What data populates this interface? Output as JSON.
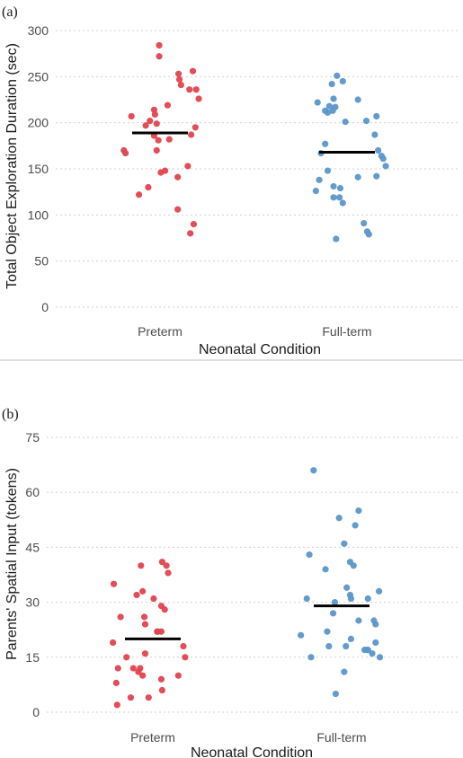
{
  "colors": {
    "preterm": "#e0434f",
    "fullterm": "#5b97c9"
  },
  "chart_data": [
    {
      "type": "scatter",
      "panel_label": "(a)",
      "xlabel": "Neonatal Condition",
      "ylabel": "Total Object Exploration Duration (sec)",
      "categories": [
        "Preterm",
        "Full-term"
      ],
      "yticks": [
        0,
        50,
        100,
        150,
        200,
        250,
        300
      ],
      "ylim": [
        -5,
        310
      ],
      "grid": true,
      "series": [
        {
          "category": "Preterm",
          "mean": 189,
          "points": [
            {
              "x": -0.34,
              "y": 207
            },
            {
              "x": -0.43,
              "y": 170
            },
            {
              "x": -0.41,
              "y": 167
            },
            {
              "x": -0.25,
              "y": 122
            },
            {
              "x": -0.14,
              "y": 130
            },
            {
              "x": -0.17,
              "y": 197
            },
            {
              "x": -0.12,
              "y": 202
            },
            {
              "x": -0.07,
              "y": 214
            },
            {
              "x": -0.06,
              "y": 209
            },
            {
              "x": -0.04,
              "y": 199
            },
            {
              "x": -0.07,
              "y": 186
            },
            {
              "x": -0.02,
              "y": 181
            },
            {
              "x": -0.04,
              "y": 170
            },
            {
              "x": -0.01,
              "y": 284
            },
            {
              "x": -0.01,
              "y": 272
            },
            {
              "x": 0.09,
              "y": 219
            },
            {
              "x": 0.11,
              "y": 182
            },
            {
              "x": 0.06,
              "y": 148
            },
            {
              "x": 0.01,
              "y": 146
            },
            {
              "x": 0.22,
              "y": 253
            },
            {
              "x": 0.23,
              "y": 247
            },
            {
              "x": 0.25,
              "y": 241
            },
            {
              "x": 0.21,
              "y": 141
            },
            {
              "x": 0.21,
              "y": 106
            },
            {
              "x": 0.35,
              "y": 236
            },
            {
              "x": 0.39,
              "y": 256
            },
            {
              "x": 0.43,
              "y": 236
            },
            {
              "x": 0.46,
              "y": 226
            },
            {
              "x": 0.42,
              "y": 195
            },
            {
              "x": 0.37,
              "y": 187
            },
            {
              "x": 0.33,
              "y": 153
            },
            {
              "x": 0.4,
              "y": 90
            },
            {
              "x": 0.36,
              "y": 80
            }
          ]
        },
        {
          "category": "Full-term",
          "mean": 168,
          "points": [
            {
              "x": -0.35,
              "y": 222
            },
            {
              "x": -0.31,
              "y": 167
            },
            {
              "x": -0.37,
              "y": 126
            },
            {
              "x": -0.26,
              "y": 177
            },
            {
              "x": -0.33,
              "y": 138
            },
            {
              "x": -0.26,
              "y": 213
            },
            {
              "x": -0.23,
              "y": 211
            },
            {
              "x": -0.21,
              "y": 218
            },
            {
              "x": -0.18,
              "y": 242
            },
            {
              "x": -0.12,
              "y": 251
            },
            {
              "x": -0.16,
              "y": 226
            },
            {
              "x": -0.17,
              "y": 213
            },
            {
              "x": -0.14,
              "y": 217
            },
            {
              "x": -0.23,
              "y": 148
            },
            {
              "x": -0.16,
              "y": 131
            },
            {
              "x": -0.16,
              "y": 119
            },
            {
              "x": -0.05,
              "y": 245
            },
            {
              "x": -0.02,
              "y": 201
            },
            {
              "x": -0.08,
              "y": 129
            },
            {
              "x": -0.09,
              "y": 119
            },
            {
              "x": -0.05,
              "y": 113
            },
            {
              "x": -0.13,
              "y": 74
            },
            {
              "x": 0.13,
              "y": 225
            },
            {
              "x": 0.13,
              "y": 141
            },
            {
              "x": 0.2,
              "y": 91
            },
            {
              "x": 0.24,
              "y": 82
            },
            {
              "x": 0.26,
              "y": 79
            },
            {
              "x": 0.23,
              "y": 202
            },
            {
              "x": 0.35,
              "y": 207
            },
            {
              "x": 0.33,
              "y": 187
            },
            {
              "x": 0.37,
              "y": 170
            },
            {
              "x": 0.41,
              "y": 164
            },
            {
              "x": 0.43,
              "y": 161
            },
            {
              "x": 0.46,
              "y": 153
            },
            {
              "x": 0.35,
              "y": 142
            }
          ]
        }
      ]
    },
    {
      "type": "scatter",
      "panel_label": "(b)",
      "xlabel": "Neonatal Condition",
      "ylabel": "Parents' Spatial Input (tokens)",
      "categories": [
        "Preterm",
        "Full-term"
      ],
      "yticks": [
        0,
        15,
        30,
        45,
        60,
        75
      ],
      "ylim": [
        -1,
        77
      ],
      "grid": true,
      "series": [
        {
          "category": "Preterm",
          "mean": 20,
          "points": [
            {
              "x": -0.46,
              "y": 35
            },
            {
              "x": -0.47,
              "y": 19
            },
            {
              "x": -0.41,
              "y": 12
            },
            {
              "x": -0.43,
              "y": 8
            },
            {
              "x": -0.42,
              "y": 2
            },
            {
              "x": -0.38,
              "y": 26
            },
            {
              "x": -0.31,
              "y": 15
            },
            {
              "x": -0.26,
              "y": 4
            },
            {
              "x": -0.23,
              "y": 12
            },
            {
              "x": -0.19,
              "y": 32
            },
            {
              "x": -0.17,
              "y": 11
            },
            {
              "x": -0.15,
              "y": 12
            },
            {
              "x": -0.12,
              "y": 10
            },
            {
              "x": -0.05,
              "y": 4
            },
            {
              "x": -0.12,
              "y": 33
            },
            {
              "x": -0.09,
              "y": 24
            },
            {
              "x": -0.1,
              "y": 26
            },
            {
              "x": -0.09,
              "y": 16
            },
            {
              "x": -0.14,
              "y": 40
            },
            {
              "x": 0.01,
              "y": 31
            },
            {
              "x": 0.06,
              "y": 22
            },
            {
              "x": 0.05,
              "y": 22
            },
            {
              "x": 0.1,
              "y": 22
            },
            {
              "x": 0.1,
              "y": 9
            },
            {
              "x": 0.11,
              "y": 6
            },
            {
              "x": 0.1,
              "y": 29
            },
            {
              "x": 0.14,
              "y": 28
            },
            {
              "x": 0.11,
              "y": 41
            },
            {
              "x": 0.16,
              "y": 40
            },
            {
              "x": 0.18,
              "y": 38
            },
            {
              "x": 0.3,
              "y": 10
            },
            {
              "x": 0.36,
              "y": 18
            },
            {
              "x": 0.38,
              "y": 15
            }
          ]
        },
        {
          "category": "Full-term",
          "mean": 29,
          "points": [
            {
              "x": -0.48,
              "y": 21
            },
            {
              "x": -0.41,
              "y": 31
            },
            {
              "x": -0.38,
              "y": 43
            },
            {
              "x": -0.33,
              "y": 66
            },
            {
              "x": -0.36,
              "y": 15
            },
            {
              "x": -0.19,
              "y": 39
            },
            {
              "x": -0.17,
              "y": 22
            },
            {
              "x": -0.15,
              "y": 18
            },
            {
              "x": -0.1,
              "y": 27
            },
            {
              "x": -0.08,
              "y": 30
            },
            {
              "x": -0.07,
              "y": 5
            },
            {
              "x": -0.03,
              "y": 53
            },
            {
              "x": 0.03,
              "y": 11
            },
            {
              "x": 0.05,
              "y": 18
            },
            {
              "x": 0.03,
              "y": 46
            },
            {
              "x": 0.06,
              "y": 34
            },
            {
              "x": 0.1,
              "y": 32
            },
            {
              "x": 0.11,
              "y": 31
            },
            {
              "x": 0.1,
              "y": 41
            },
            {
              "x": 0.14,
              "y": 40
            },
            {
              "x": 0.11,
              "y": 20
            },
            {
              "x": 0.16,
              "y": 51
            },
            {
              "x": 0.2,
              "y": 25
            },
            {
              "x": 0.2,
              "y": 55
            },
            {
              "x": 0.27,
              "y": 17
            },
            {
              "x": 0.3,
              "y": 17
            },
            {
              "x": 0.31,
              "y": 31
            },
            {
              "x": 0.31,
              "y": 17
            },
            {
              "x": 0.36,
              "y": 16
            },
            {
              "x": 0.38,
              "y": 25
            },
            {
              "x": 0.4,
              "y": 24
            },
            {
              "x": 0.4,
              "y": 19
            },
            {
              "x": 0.44,
              "y": 33
            },
            {
              "x": 0.45,
              "y": 15
            }
          ]
        }
      ]
    }
  ]
}
